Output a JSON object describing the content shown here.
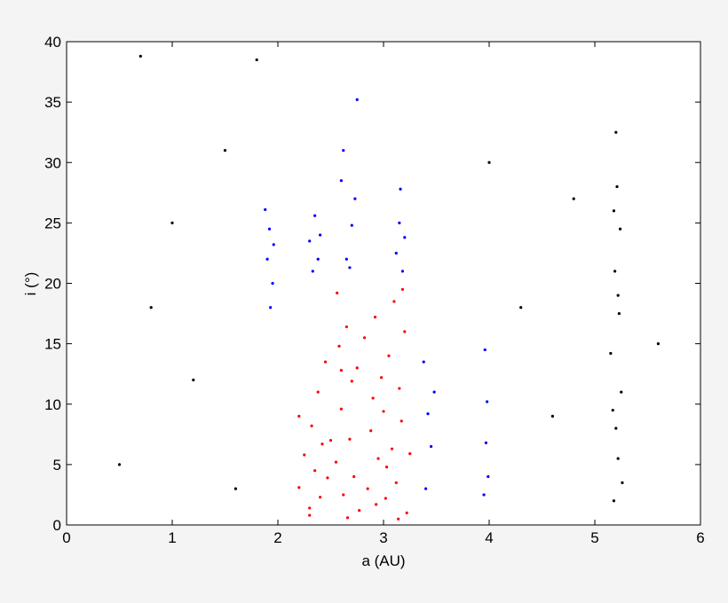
{
  "chart_data": {
    "type": "scatter",
    "xlabel": "a   (AU)",
    "ylabel": "i (°)",
    "xlim": [
      0,
      6
    ],
    "xticks": [
      0,
      1,
      2,
      3,
      4,
      5,
      6
    ],
    "ylim": [
      0,
      40
    ],
    "yticks": [
      0,
      5,
      10,
      15,
      20,
      25,
      30,
      35,
      40
    ],
    "series": [
      {
        "color": "#ff0000",
        "x": [
          2.2,
          2.25,
          2.3,
          2.32,
          2.35,
          2.38,
          2.4,
          2.42,
          2.45,
          2.47,
          2.3,
          2.2,
          2.55,
          2.58,
          2.6,
          2.62,
          2.65,
          2.68,
          2.7,
          2.72,
          2.75,
          2.77,
          2.56,
          2.66,
          2.85,
          2.88,
          2.9,
          2.93,
          2.95,
          2.98,
          3.0,
          3.02,
          3.05,
          3.08,
          3.1,
          3.12,
          3.15,
          3.17,
          3.2,
          3.22,
          3.18,
          3.03,
          2.82,
          2.5,
          3.25,
          2.92,
          2.6,
          3.14
        ],
        "values": [
          3.1,
          5.8,
          1.4,
          8.2,
          4.5,
          11.0,
          2.3,
          6.7,
          13.5,
          3.9,
          0.8,
          9.0,
          5.2,
          14.8,
          9.6,
          2.5,
          16.4,
          7.1,
          11.9,
          4.0,
          13.0,
          1.2,
          19.2,
          0.6,
          3.0,
          7.8,
          10.5,
          1.7,
          5.5,
          12.2,
          9.4,
          2.2,
          14.0,
          6.3,
          18.5,
          3.5,
          11.3,
          8.6,
          16.0,
          1.0,
          19.5,
          4.8,
          15.5,
          7.0,
          5.9,
          17.2,
          12.8,
          0.5
        ]
      },
      {
        "color": "#0000ff",
        "x": [
          1.9,
          1.92,
          1.95,
          1.93,
          1.96,
          1.88,
          2.3,
          2.35,
          2.38,
          2.4,
          2.33,
          2.6,
          2.65,
          2.62,
          2.7,
          2.68,
          2.75,
          2.73,
          3.12,
          3.15,
          3.18,
          3.16,
          3.2,
          3.38,
          3.42,
          3.45,
          3.48,
          3.4,
          3.95,
          3.97,
          3.98,
          3.96,
          3.99
        ],
        "values": [
          22.0,
          24.5,
          20.0,
          18.0,
          23.2,
          26.1,
          23.5,
          25.6,
          22.0,
          24.0,
          21.0,
          28.5,
          22.0,
          31.0,
          24.8,
          21.3,
          35.2,
          27.0,
          22.5,
          25.0,
          21.0,
          27.8,
          23.8,
          13.5,
          9.2,
          6.5,
          11.0,
          3.0,
          2.5,
          6.8,
          10.2,
          14.5,
          4.0
        ]
      },
      {
        "color": "#000000",
        "x": [
          5.18,
          5.22,
          5.2,
          5.25,
          5.15,
          5.23,
          5.19,
          5.24,
          5.21,
          5.2,
          5.17,
          5.26,
          5.22,
          5.18,
          0.7,
          1.0,
          1.2,
          0.5,
          1.5,
          1.6,
          4.3,
          4.6,
          4.0,
          1.8,
          0.8,
          5.6,
          4.8
        ],
        "values": [
          2.0,
          5.5,
          8.0,
          11.0,
          14.2,
          17.5,
          21.0,
          24.5,
          28.0,
          32.5,
          9.5,
          3.5,
          19.0,
          26.0,
          38.8,
          25.0,
          12.0,
          5.0,
          31.0,
          3.0,
          18.0,
          9.0,
          30.0,
          38.5,
          18.0,
          15.0,
          27.0
        ]
      }
    ]
  }
}
